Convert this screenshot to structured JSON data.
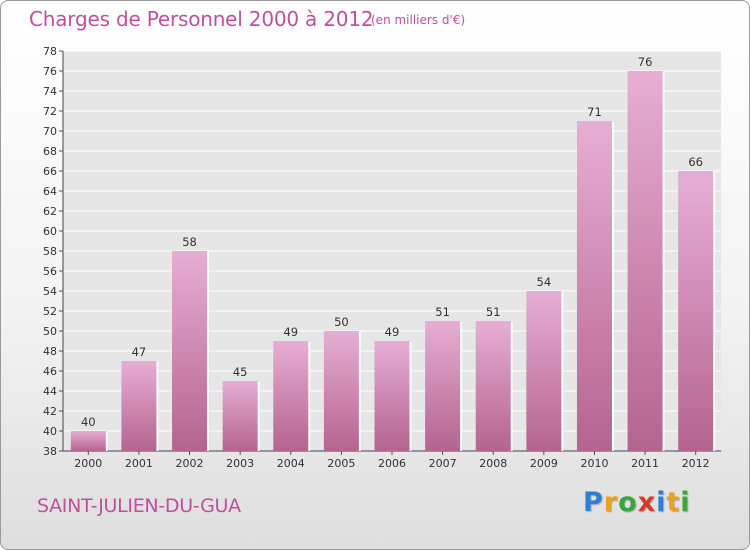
{
  "header": {
    "title": "Charges de Personnel 2000 à 2012",
    "subtitle": "(en milliers d'€)"
  },
  "footer": {
    "town": "SAINT-JULIEN-DU-GUA",
    "logo_letters": [
      {
        "ch": "P",
        "color": "#2f7fd0"
      },
      {
        "ch": "r",
        "color": "#e8a21c"
      },
      {
        "ch": "o",
        "color": "#3aa63a"
      },
      {
        "ch": "x",
        "color": "#d63a2a"
      },
      {
        "ch": "i",
        "color": "#2f7fd0"
      },
      {
        "ch": "t",
        "color": "#e8a21c"
      },
      {
        "ch": "i",
        "color": "#3aa63a"
      }
    ]
  },
  "colors": {
    "accent": "#c0509a",
    "bar_light": "#e7aed3",
    "bar_dark": "#b4648f"
  },
  "chart_data": {
    "type": "bar",
    "categories": [
      "2000",
      "2001",
      "2002",
      "2003",
      "2004",
      "2005",
      "2006",
      "2007",
      "2008",
      "2009",
      "2010",
      "2011",
      "2012"
    ],
    "values": [
      40,
      47,
      58,
      45,
      49,
      50,
      49,
      51,
      51,
      54,
      71,
      76,
      66
    ],
    "ylim": [
      38,
      78
    ],
    "yticks": [
      38,
      40,
      42,
      44,
      46,
      48,
      50,
      52,
      54,
      56,
      58,
      60,
      62,
      64,
      66,
      68,
      70,
      72,
      74,
      76,
      78
    ],
    "grid": true
  }
}
